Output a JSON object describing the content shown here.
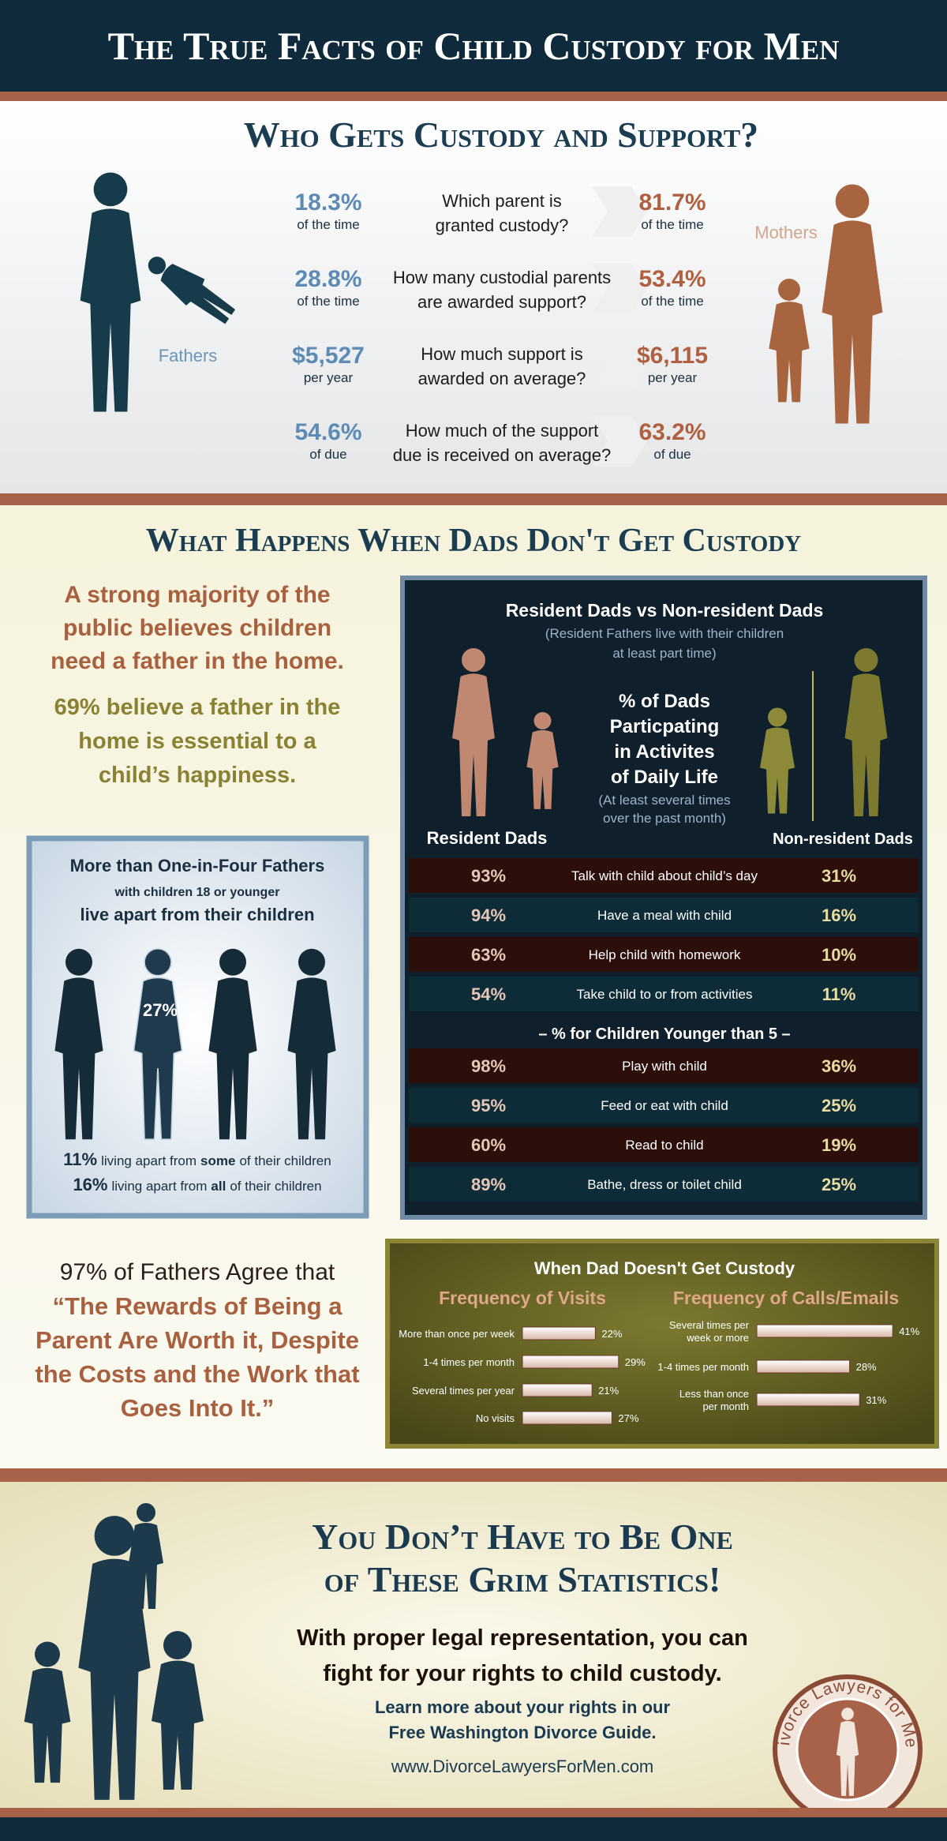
{
  "header": {
    "title": "The True Facts of Child Custody for Men"
  },
  "custody": {
    "title": "Who Gets Custody and Support?",
    "fathers_label": "Fathers",
    "mothers_label": "Mothers",
    "rows": [
      {
        "question": [
          "Which parent is",
          "granted custody?"
        ],
        "fathers": "18.3%",
        "fathers_unit": "of the time",
        "mothers": "81.7%",
        "mothers_unit": "of the time"
      },
      {
        "question": [
          "How many custodial parents",
          "are awarded support?"
        ],
        "fathers": "28.8%",
        "fathers_unit": "of the time",
        "mothers": "53.4%",
        "mothers_unit": "of the time"
      },
      {
        "question": [
          "How much support is",
          "awarded on average?"
        ],
        "fathers": "$5,527",
        "fathers_unit": "per year",
        "mothers": "$6,115",
        "mothers_unit": "per year"
      },
      {
        "question": [
          "How much of the support",
          "due is received on average?"
        ],
        "fathers": "54.6%",
        "fathers_unit": "of due",
        "mothers": "63.2%",
        "mothers_unit": "of due"
      }
    ]
  },
  "impact": {
    "title": "What Happens When Dads Don't Get Custody",
    "majority": [
      "A strong majority of the",
      "public believes children",
      "need a father in the home."
    ],
    "belief": [
      "69% believe a father in the",
      "home is essential to a",
      "child’s happiness."
    ],
    "apart": {
      "heading": "More than One-in-Four Fathers",
      "sub": "with children 18 or younger",
      "heading2": "live apart from their children",
      "figure": "27%",
      "lines": [
        {
          "pct": "11%",
          "pre": "living apart from",
          "emphasis": "some",
          "post": "of their children"
        },
        {
          "pct": "16%",
          "pre": "living apart from",
          "emphasis": "all",
          "post": "of their children"
        }
      ]
    },
    "activities": {
      "title": "Resident Dads vs Non-resident Dads",
      "subtitle": [
        "(Resident Fathers live with their children",
        "at least part time)"
      ],
      "heading": [
        "% of Dads",
        "Particpating",
        "in Activites",
        "of Daily Life"
      ],
      "note": [
        "(At least several times",
        "over the past month)"
      ],
      "resident_label": "Resident Dads",
      "nonresident_label": "Non-resident Dads",
      "rows": [
        {
          "resident": "93%",
          "activity": "Talk with child about child’s day",
          "nonresident": "31%"
        },
        {
          "resident": "94%",
          "activity": "Have a meal with child",
          "nonresident": "16%"
        },
        {
          "resident": "63%",
          "activity": "Help child with homework",
          "nonresident": "10%"
        },
        {
          "resident": "54%",
          "activity": "Take child to or from activities",
          "nonresident": "11%"
        }
      ],
      "young_heading": "– % for Children Younger than  5 –",
      "young_rows": [
        {
          "resident": "98%",
          "activity": "Play with child",
          "nonresident": "36%"
        },
        {
          "resident": "95%",
          "activity": "Feed or eat with child",
          "nonresident": "25%"
        },
        {
          "resident": "60%",
          "activity": "Read to child",
          "nonresident": "19%"
        },
        {
          "resident": "89%",
          "activity": "Bathe, dress or toilet child",
          "nonresident": "25%"
        }
      ]
    },
    "quote": {
      "lead": "97% of Fathers Agree that",
      "text": [
        "“The Rewards of Being a",
        "Parent Are Worth it, Despite",
        "the Costs and the Work that",
        "Goes Into It.”"
      ]
    },
    "frequency": {
      "title": "When Dad Doesn't Get Custody",
      "visits": {
        "title": "Frequency of Visits",
        "categories": [
          [
            "More than once per week"
          ],
          [
            "1-4 times per month"
          ],
          [
            "Several times per year"
          ],
          [
            "No visits"
          ]
        ],
        "values": [
          22,
          29,
          21,
          27
        ],
        "value_labels": [
          "22%",
          "29%",
          "21%",
          "27%"
        ]
      },
      "calls": {
        "title": "Frequency of Calls/Emails",
        "categories": [
          [
            "Several times per",
            "week or more"
          ],
          [
            "1-4 times per month"
          ],
          [
            "Less than once",
            "per month"
          ]
        ],
        "values": [
          41,
          28,
          31
        ],
        "value_labels": [
          "41%",
          "28%",
          "31%"
        ]
      }
    }
  },
  "footer": {
    "title": [
      "You Don’t Have to Be One",
      "of These Grim Statistics!"
    ],
    "message": [
      "With proper legal representation, you can",
      "fight for your rights to child custody."
    ],
    "guide": [
      "Learn more about your rights in our",
      "Free Washington Divorce Guide."
    ],
    "url": "www.DivorceLawyersForMen.com",
    "logo": "Divorce Lawyers for Men"
  }
}
